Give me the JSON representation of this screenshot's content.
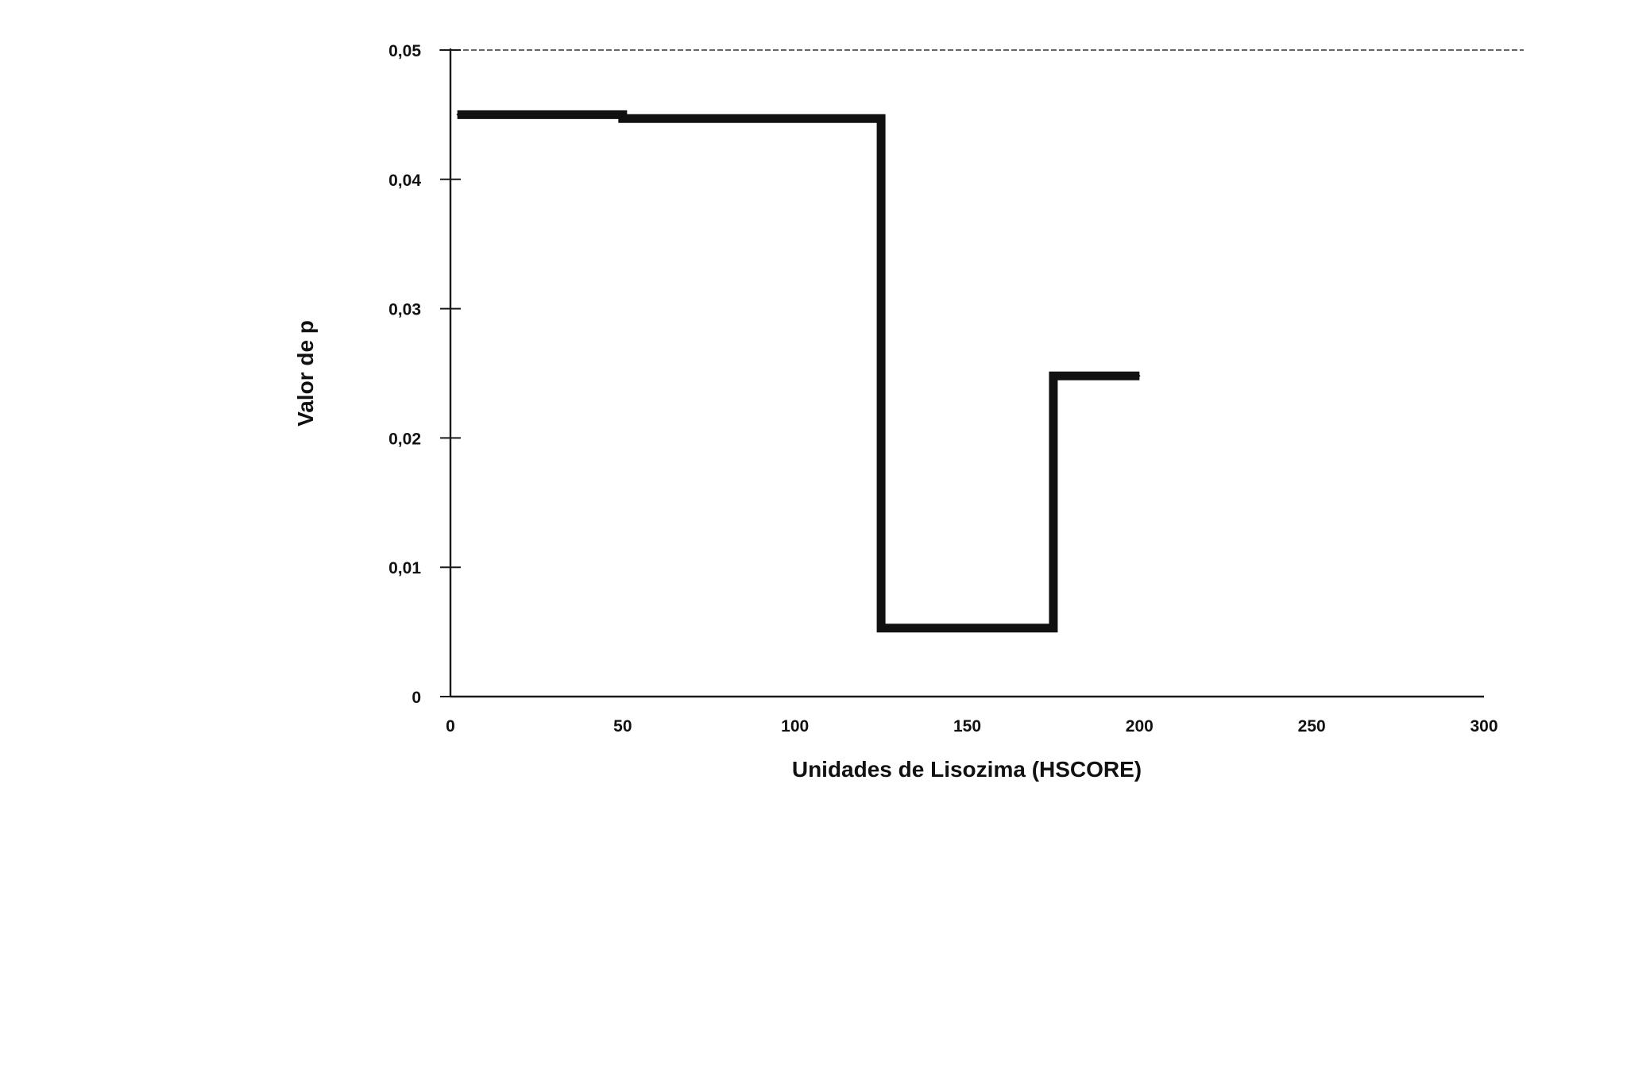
{
  "chart_data": {
    "type": "line",
    "step": true,
    "xlabel": "Unidades de Lisozima (HSCORE)",
    "ylabel": "Valor de p",
    "xlim": [
      0,
      300
    ],
    "ylim": [
      0,
      0.05
    ],
    "x_ticks": [
      0,
      50,
      100,
      150,
      200,
      250,
      300
    ],
    "x_tick_labels": [
      "0",
      "50",
      "100",
      "150",
      "200",
      "250",
      "300"
    ],
    "y_ticks": [
      0,
      0.01,
      0.02,
      0.03,
      0.04,
      0.05
    ],
    "y_tick_labels": [
      "0",
      "0,01",
      "0,02",
      "0,03",
      "0,04",
      "0,05"
    ],
    "grid": false,
    "reference_line": {
      "y": 0.05,
      "style": "dashed"
    },
    "series": [
      {
        "x": [
          2,
          50,
          125,
          175,
          200
        ],
        "y": [
          0.045,
          0.0447,
          0.0053,
          0.0248,
          0.0248
        ]
      }
    ],
    "colors": {
      "line": "#111111",
      "axis": "#1a1a1a",
      "reference": "#333333"
    }
  }
}
